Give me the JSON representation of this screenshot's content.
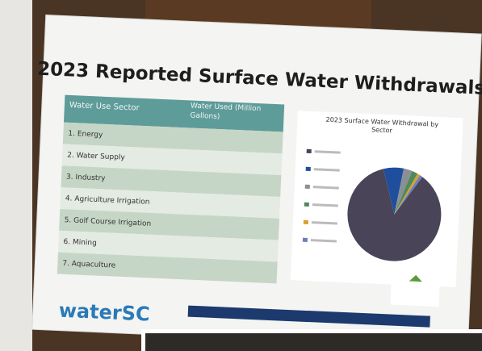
{
  "poster": {
    "title": "2023 Reported Surface Water Withdrawals",
    "table": {
      "headers": [
        "Water Use Sector",
        "Water Used (Million Gallons)"
      ],
      "rows": [
        "1. Energy",
        "2. Water Supply",
        "3. Industry",
        "4. Agriculture Irrigation",
        "5. Golf Course Irrigation",
        "6. Mining",
        "7. Aquaculture"
      ]
    },
    "pie": {
      "title": "2023 Surface Water Withdrawal by Sector",
      "values": [
        86,
        7,
        3,
        2,
        1,
        1
      ],
      "colors": [
        "#4a4458",
        "#1f4e9c",
        "#8a8f96",
        "#4f8a5a",
        "#d8a030",
        "#6a7fc0"
      ]
    },
    "logo": "waterSC"
  }
}
